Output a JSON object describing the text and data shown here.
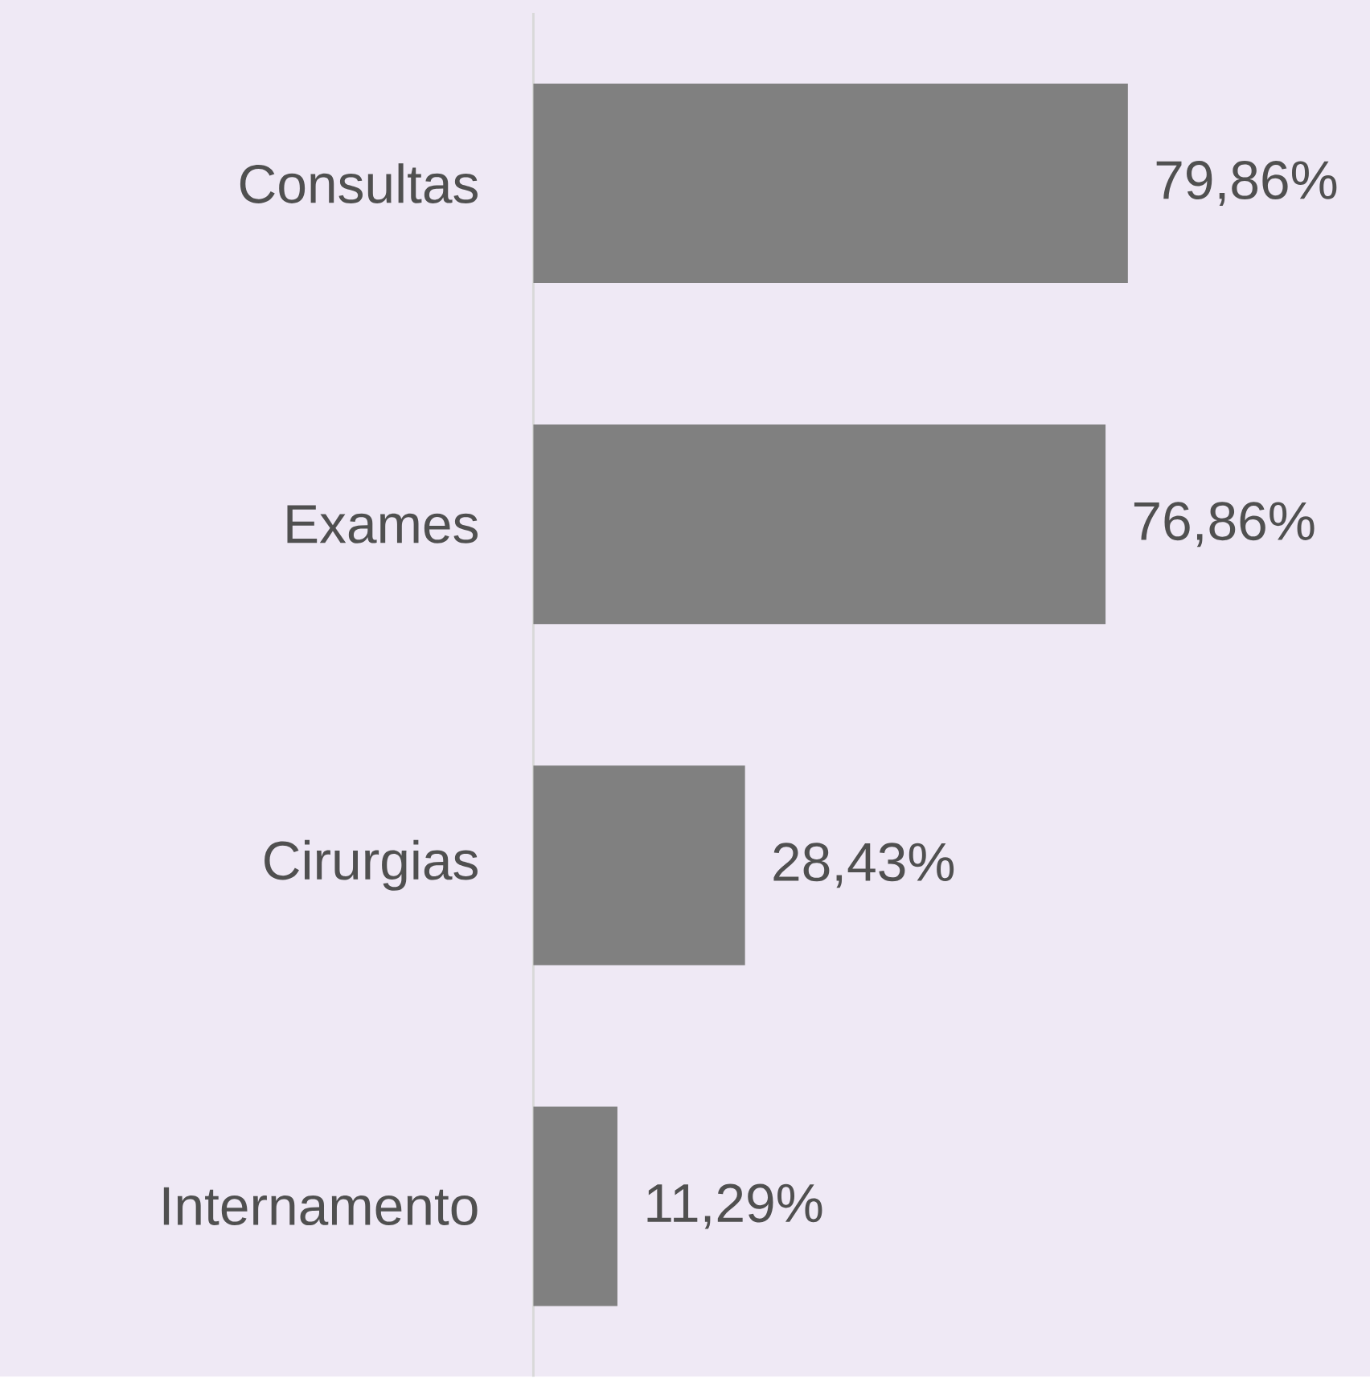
{
  "chart_data": {
    "type": "bar",
    "orientation": "horizontal",
    "categories": [
      "Consultas",
      "Exames",
      "Cirurgias",
      "Internamento"
    ],
    "values": [
      79.86,
      76.86,
      28.43,
      11.29
    ],
    "value_labels": [
      "79,86%",
      "76,86%",
      "28,43%",
      "11,29%"
    ],
    "color": "#808080"
  }
}
